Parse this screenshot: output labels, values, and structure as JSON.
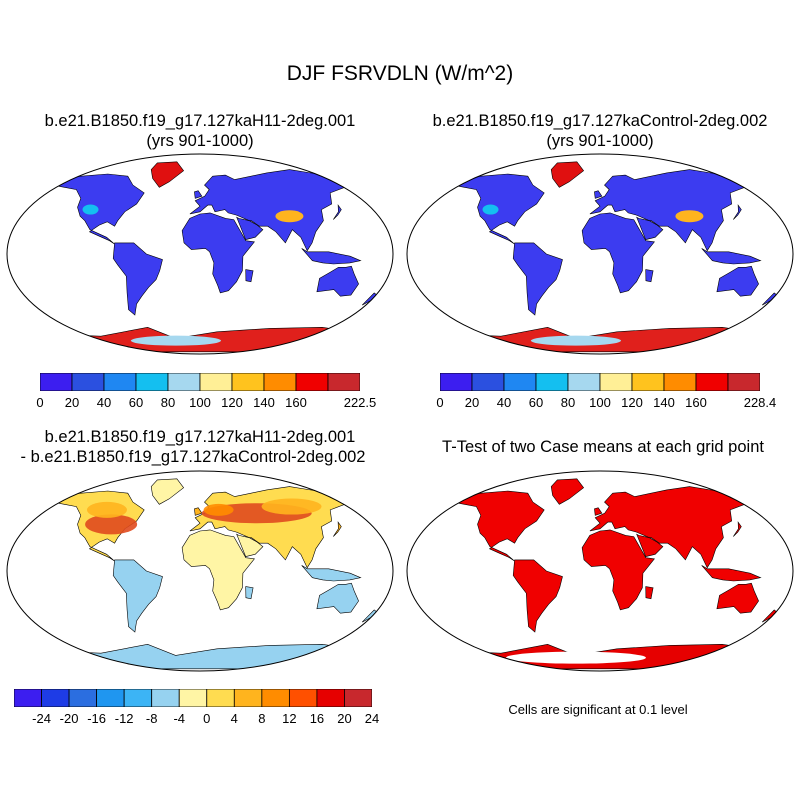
{
  "figure_title": "DJF FSRVDLN (W/m^2)",
  "panels": [
    {
      "title": "b.e21.B1850.f19_g17.127kaH11-2deg.001",
      "subtitle": "(yrs 901-1000)",
      "colorbar": {
        "colors": [
          "#3c1ef0",
          "#2b50e0",
          "#1f87f2",
          "#14bff0",
          "#a6d8ef",
          "#ffef96",
          "#ffc31e",
          "#ff8c00",
          "#f00000",
          "#c8282d"
        ],
        "labels": [
          "0",
          "20",
          "40",
          "60",
          "80",
          "100",
          "120",
          "140",
          "160",
          "222.5"
        ]
      }
    },
    {
      "title": "b.e21.B1850.f19_g17.127kaControl-2deg.002",
      "subtitle": "(yrs 901-1000)",
      "colorbar": {
        "colors": [
          "#3c1ef0",
          "#2b50e0",
          "#1f87f2",
          "#14bff0",
          "#a6d8ef",
          "#ffef96",
          "#ffc31e",
          "#ff8c00",
          "#f00000",
          "#c8282d"
        ],
        "labels": [
          "0",
          "20",
          "40",
          "60",
          "80",
          "100",
          "120",
          "140",
          "160",
          "228.4"
        ]
      }
    },
    {
      "title": "b.e21.B1850.f19_g17.127kaH11-2deg.001",
      "subtitle": "- b.e21.B1850.f19_g17.127kaControl-2deg.002",
      "colorbar": {
        "colors": [
          "#3c1ef0",
          "#1e3ce6",
          "#2b6ee0",
          "#1f96f0",
          "#3cb4f5",
          "#96d2f0",
          "#fff5a5",
          "#ffdc50",
          "#ffb41e",
          "#ff8c00",
          "#ff5000",
          "#e60000",
          "#c8282d"
        ],
        "labels": [
          "-24",
          "-20",
          "-16",
          "-12",
          "-8",
          "-4",
          "0",
          "4",
          "8",
          "12",
          "16",
          "20",
          "24"
        ]
      }
    },
    {
      "title": "T-Test of two Case means at each grid point",
      "note": "Cells are significant at 0.1 level"
    }
  ]
}
